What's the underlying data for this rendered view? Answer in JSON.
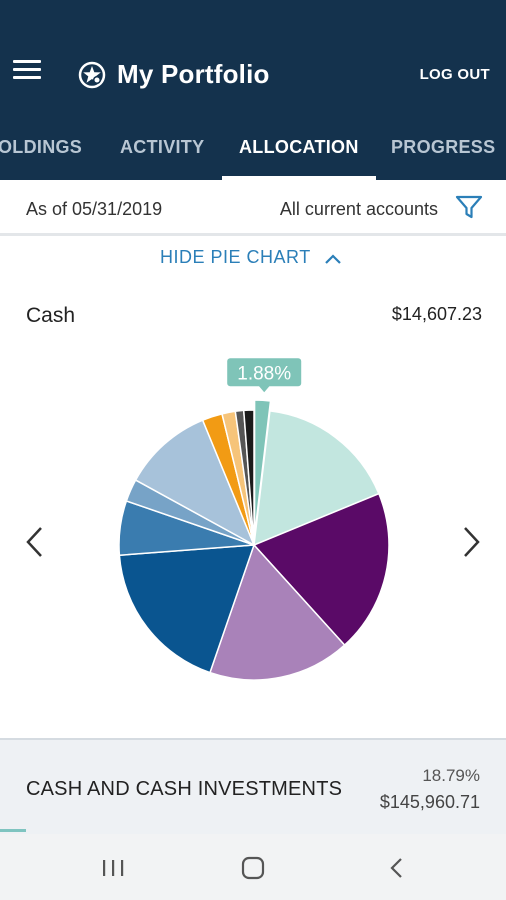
{
  "header": {
    "title": "My Portfolio",
    "logout_label": "LOG OUT"
  },
  "tabs": [
    {
      "label": "HOLDINGS",
      "display": "OLDINGS",
      "active": false
    },
    {
      "label": "ACTIVITY",
      "active": false
    },
    {
      "label": "ALLOCATION",
      "active": true
    },
    {
      "label": "PROGRESS",
      "active": false
    }
  ],
  "filter": {
    "as_of": "As of 05/31/2019",
    "accounts": "All current accounts"
  },
  "chart_toggle": {
    "label": "HIDE PIE CHART"
  },
  "selected_segment": {
    "name": "Cash",
    "value": "$14,607.23",
    "callout": "1.88%"
  },
  "chart_data": {
    "type": "pie",
    "slices": [
      {
        "value": 1.88,
        "color": "#7fc4b8",
        "selected": true
      },
      {
        "value": 16.91,
        "color": "#c2e6df"
      },
      {
        "value": 19.5,
        "color": "#5a0a67"
      },
      {
        "value": 17.0,
        "color": "#a982b9"
      },
      {
        "value": 18.5,
        "color": "#0a5590"
      },
      {
        "value": 6.5,
        "color": "#3a7caf"
      },
      {
        "value": 2.7,
        "color": "#77a3c7"
      },
      {
        "value": 10.8,
        "color": "#a7c2da"
      },
      {
        "value": 2.4,
        "color": "#f29b14"
      },
      {
        "value": 1.6,
        "color": "#f6c47a"
      },
      {
        "value": 1.0,
        "color": "#555555"
      },
      {
        "value": 1.21,
        "color": "#1b1b1b"
      }
    ]
  },
  "summary": {
    "label": "CASH AND CASH INVESTMENTS",
    "percent": "18.79%",
    "amount": "$145,960.71"
  },
  "colors": {
    "header_bg": "#14324d",
    "link": "#2b7fb8",
    "accent": "#7fc4c0"
  }
}
